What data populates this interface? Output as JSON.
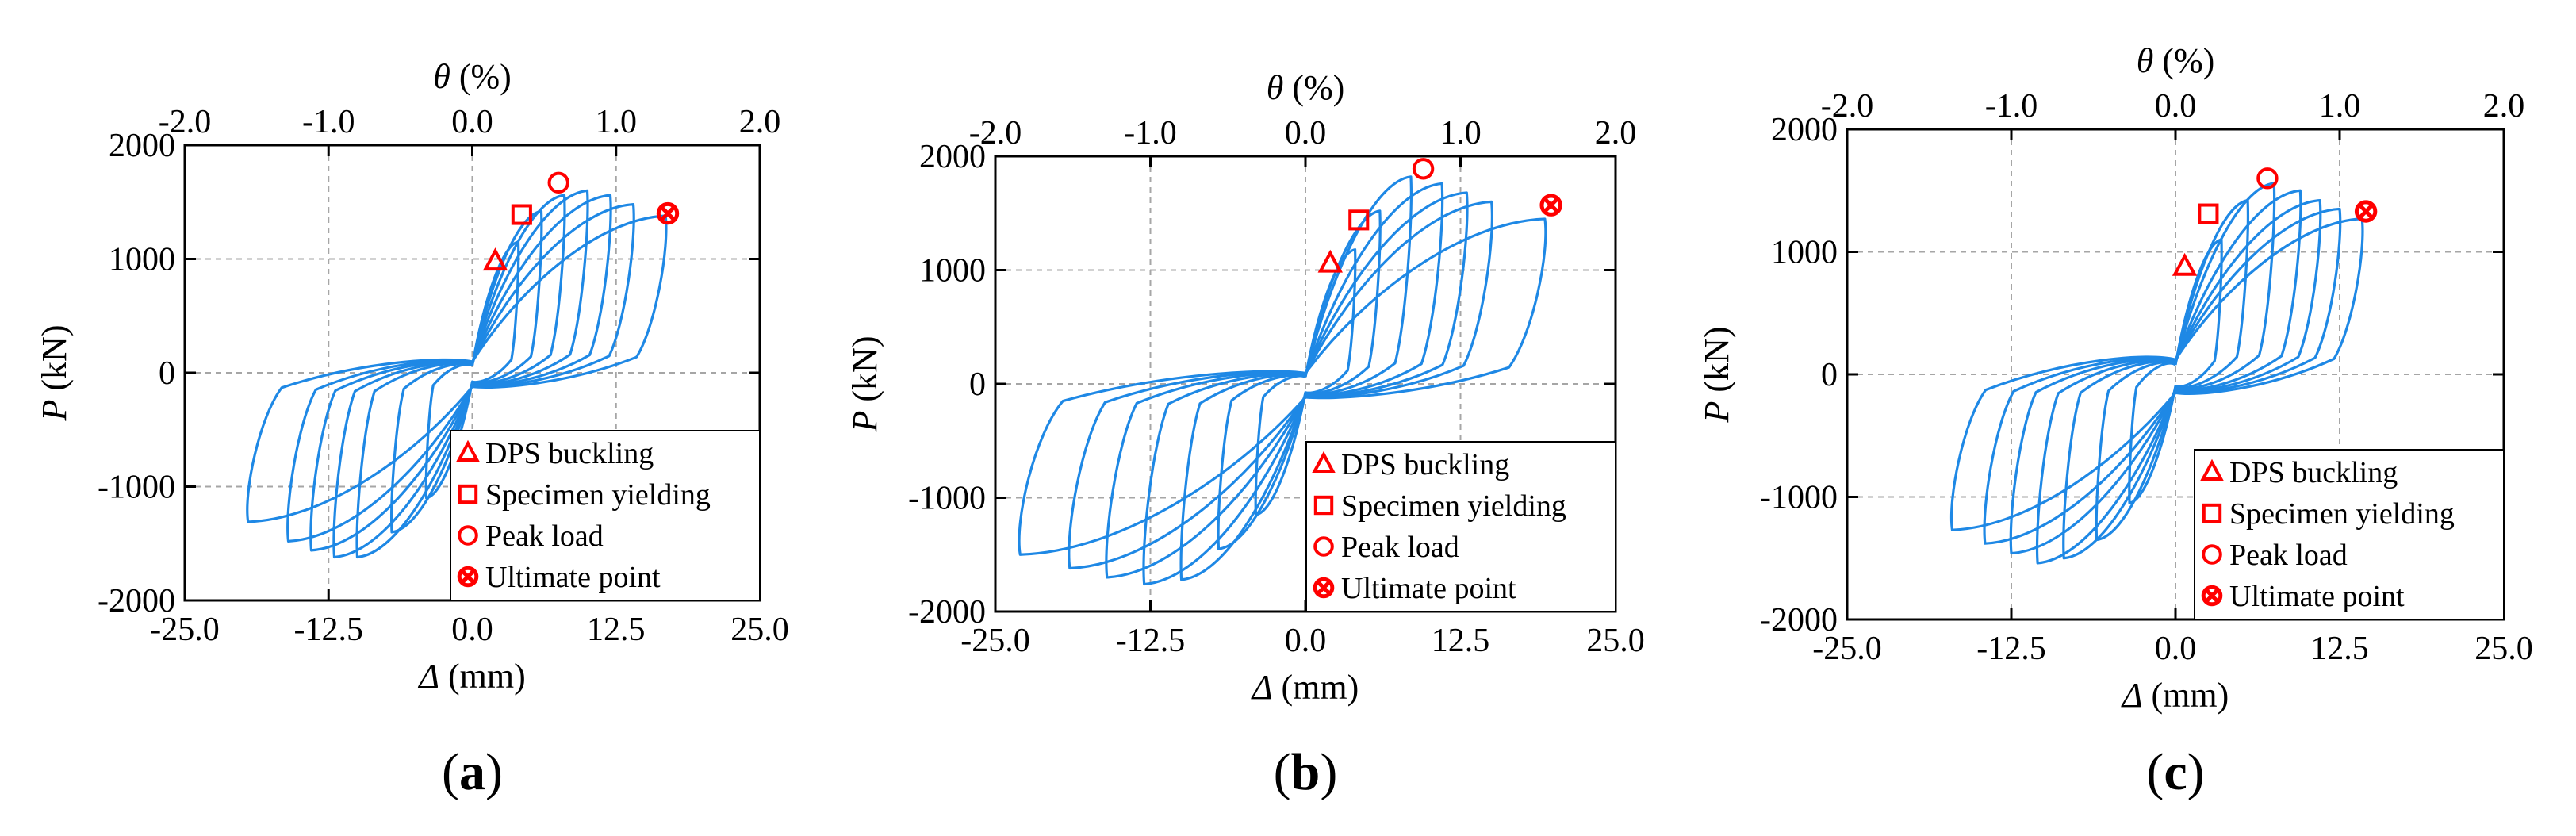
{
  "colors": {
    "curve": "#1e88e5",
    "marker": "#ff0000",
    "axis": "#000000",
    "grid": "#a6a6a6"
  },
  "legend": {
    "items": [
      {
        "marker": "triangle",
        "label": "DPS buckling"
      },
      {
        "marker": "square",
        "label": "Specimen yielding"
      },
      {
        "marker": "circle",
        "label": "Peak load"
      },
      {
        "marker": "circle-x",
        "label": "Ultimate point"
      }
    ]
  },
  "chart_data": [
    {
      "panel_label": "a",
      "type": "line",
      "xlabel": {
        "symbol": "Δ",
        "unit": " (mm)"
      },
      "ylabel": {
        "symbol": "P",
        "unit": " (kN)"
      },
      "x2label": {
        "symbol": "θ",
        "unit": " (%)"
      },
      "xlim": [
        -25,
        25
      ],
      "ylim": [
        -2000,
        2000
      ],
      "xticks": [
        "-25.0",
        "-12.5",
        "0.0",
        "12.5",
        "25.0"
      ],
      "yticks": [
        "2000",
        "1000",
        "0",
        "-1000",
        "-2000"
      ],
      "x2ticks": [
        "-2.0",
        "-1.0",
        "0.0",
        "1.0",
        "2.0"
      ],
      "grid": true,
      "legend_position": "bottom-right",
      "hysteresis": {
        "pos_peaks": [
          [
            4,
            1150
          ],
          [
            6,
            1420
          ],
          [
            8,
            1560
          ],
          [
            10,
            1600
          ],
          [
            12,
            1560
          ],
          [
            14,
            1480
          ],
          [
            16.8,
            1380
          ]
        ],
        "neg_peaks": [
          [
            -4,
            -1100
          ],
          [
            -7,
            -1400
          ],
          [
            -10,
            -1620
          ],
          [
            -12,
            -1620
          ],
          [
            -14,
            -1560
          ],
          [
            -16,
            -1480
          ],
          [
            -19.5,
            -1310
          ]
        ],
        "pinch_y": 260
      },
      "points": {
        "dps_buckling": [
          2.0,
          980
        ],
        "specimen_yielding": [
          4.3,
          1390
        ],
        "peak_load": [
          7.5,
          1670
        ],
        "ultimate_point": [
          17.0,
          1400
        ]
      }
    },
    {
      "panel_label": "b",
      "type": "line",
      "xlabel": {
        "symbol": "Δ",
        "unit": " (mm)"
      },
      "ylabel": {
        "symbol": "P",
        "unit": " (kN)"
      },
      "x2label": {
        "symbol": "θ",
        "unit": " (%)"
      },
      "xlim": [
        -25,
        25
      ],
      "ylim": [
        -2000,
        2000
      ],
      "xticks": [
        "-25.0",
        "-12.5",
        "0.0",
        "12.5",
        "25.0"
      ],
      "yticks": [
        "2000",
        "1000",
        "0",
        "-1000",
        "-2000"
      ],
      "x2ticks": [
        "-2.0",
        "-1.0",
        "0.0",
        "1.0",
        "2.0"
      ],
      "grid": true,
      "legend_position": "bottom-right",
      "hysteresis": {
        "pos_peaks": [
          [
            4,
            1180
          ],
          [
            6,
            1520
          ],
          [
            8.5,
            1820
          ],
          [
            11,
            1760
          ],
          [
            13,
            1680
          ],
          [
            15,
            1600
          ],
          [
            19.3,
            1450
          ]
        ],
        "neg_peaks": [
          [
            -4,
            -1150
          ],
          [
            -7,
            -1450
          ],
          [
            -10,
            -1720
          ],
          [
            -13,
            -1760
          ],
          [
            -16,
            -1700
          ],
          [
            -19,
            -1620
          ],
          [
            -23,
            -1500
          ]
        ],
        "pinch_y": 250
      },
      "points": {
        "dps_buckling": [
          2.0,
          1060
        ],
        "specimen_yielding": [
          4.3,
          1440
        ],
        "peak_load": [
          9.5,
          1890
        ],
        "ultimate_point": [
          19.8,
          1570
        ]
      }
    },
    {
      "panel_label": "c",
      "type": "line",
      "xlabel": {
        "symbol": "Δ",
        "unit": " (mm)"
      },
      "ylabel": {
        "symbol": "P",
        "unit": " (kN)"
      },
      "x2label": {
        "symbol": "θ",
        "unit": " (%)"
      },
      "xlim": [
        -25,
        25
      ],
      "ylim": [
        -2000,
        2000
      ],
      "xticks": [
        "-25.0",
        "-12.5",
        "0.0",
        "12.5",
        "25.0"
      ],
      "yticks": [
        "2000",
        "1000",
        "0",
        "-1000",
        "-2000"
      ],
      "x2ticks": [
        "-2.0",
        "-1.0",
        "0.0",
        "1.0",
        "2.0"
      ],
      "grid": true,
      "legend_position": "bottom-right",
      "hysteresis": {
        "pos_peaks": [
          [
            3.5,
            1100
          ],
          [
            5.5,
            1420
          ],
          [
            7.5,
            1560
          ],
          [
            9.5,
            1500
          ],
          [
            11,
            1420
          ],
          [
            12.5,
            1350
          ],
          [
            14.2,
            1270
          ]
        ],
        "neg_peaks": [
          [
            -3.5,
            -1050
          ],
          [
            -6,
            -1350
          ],
          [
            -8.5,
            -1500
          ],
          [
            -10.5,
            -1540
          ],
          [
            -12.5,
            -1460
          ],
          [
            -14.5,
            -1380
          ],
          [
            -17,
            -1270
          ]
        ],
        "pinch_y": 320
      },
      "points": {
        "dps_buckling": [
          0.7,
          880
        ],
        "specimen_yielding": [
          2.5,
          1310
        ],
        "peak_load": [
          7.0,
          1600
        ],
        "ultimate_point": [
          14.5,
          1330
        ]
      }
    }
  ]
}
